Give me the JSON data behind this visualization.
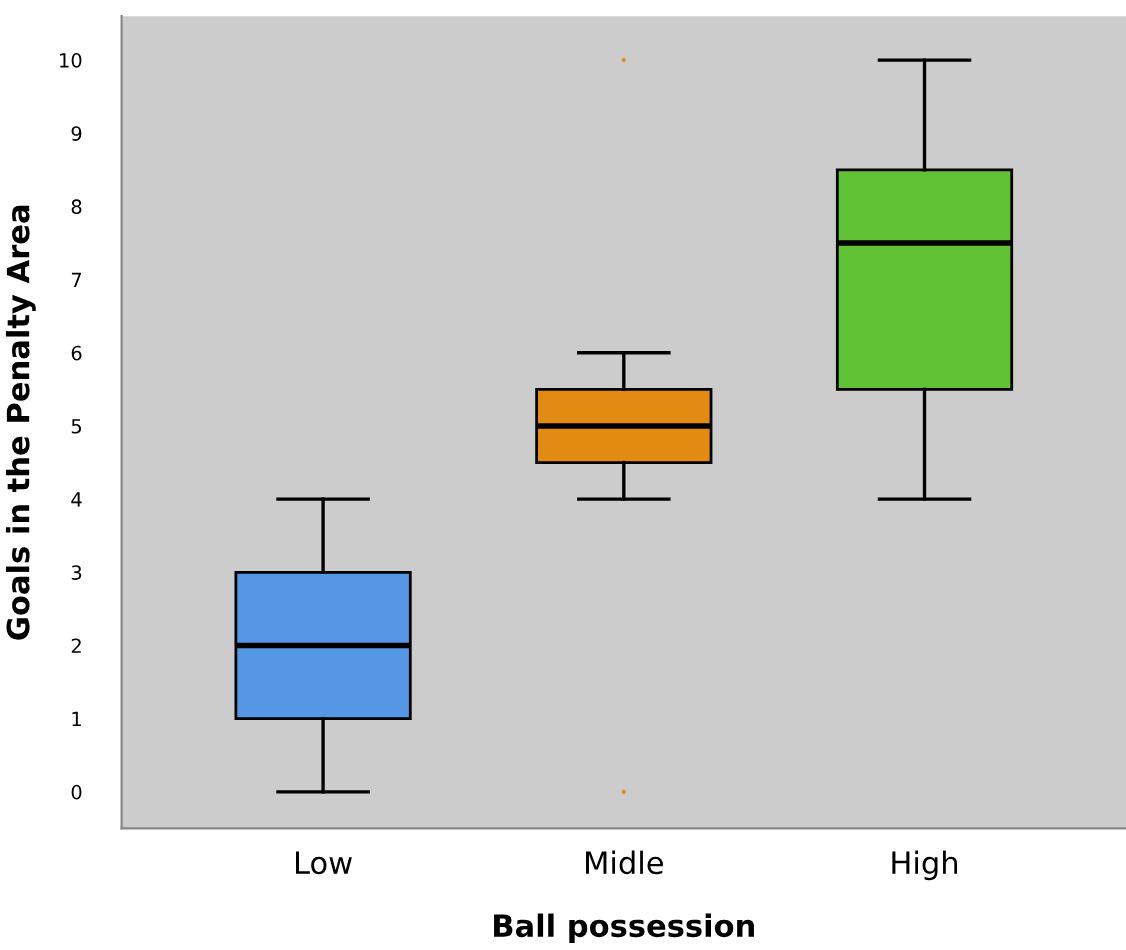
{
  "chart_data": {
    "type": "box",
    "xlabel": "Ball possession",
    "ylabel": "Goals in the Penalty Area",
    "categories": [
      "Low",
      "Midle",
      "High"
    ],
    "colors": [
      "#5597e5",
      "#e18b13",
      "#62c236"
    ],
    "boxes": [
      {
        "low": 0,
        "q1": 1,
        "median": 2,
        "q3": 3,
        "high": 4
      },
      {
        "low": 4,
        "q1": 4.5,
        "median": 5,
        "q3": 5.5,
        "high": 6,
        "outliers": [
          0,
          10
        ]
      },
      {
        "low": 4,
        "q1": 5.5,
        "median": 7.5,
        "q3": 8.5,
        "high": 10
      }
    ],
    "ylim": [
      -0.5,
      10.6
    ],
    "yticks": [
      0,
      1,
      2,
      3,
      4,
      5,
      6,
      7,
      8,
      9,
      10
    ],
    "grid": false
  }
}
